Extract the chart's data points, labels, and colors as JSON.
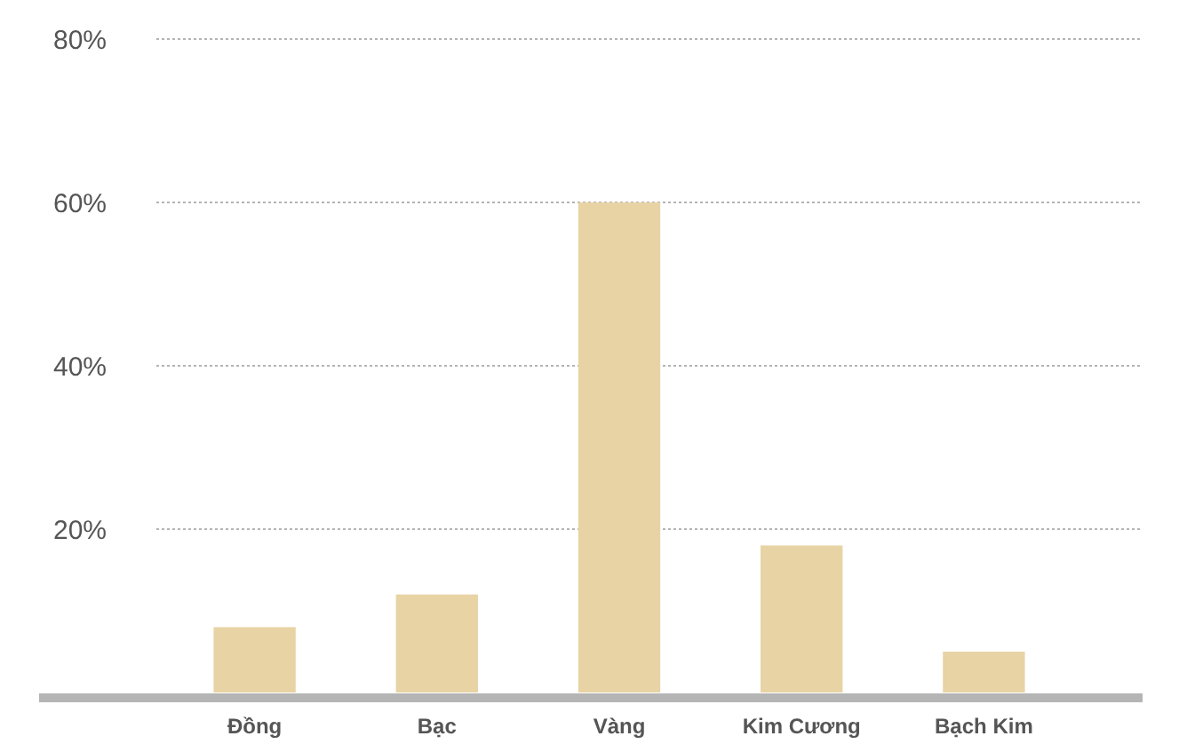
{
  "chart_data": {
    "type": "bar",
    "categories": [
      "Đồng",
      "Bạc",
      "Vàng",
      "Kim Cương",
      "Bạch Kim"
    ],
    "values": [
      8,
      12,
      60,
      18,
      5
    ],
    "color": "#e8d3a5",
    "ylim": [
      0,
      80
    ],
    "yticks": [
      {
        "value": 20,
        "label": "20%"
      },
      {
        "value": 40,
        "label": "40%"
      },
      {
        "value": 60,
        "label": "60%"
      },
      {
        "value": 80,
        "label": "80%"
      }
    ],
    "grid": "y"
  }
}
